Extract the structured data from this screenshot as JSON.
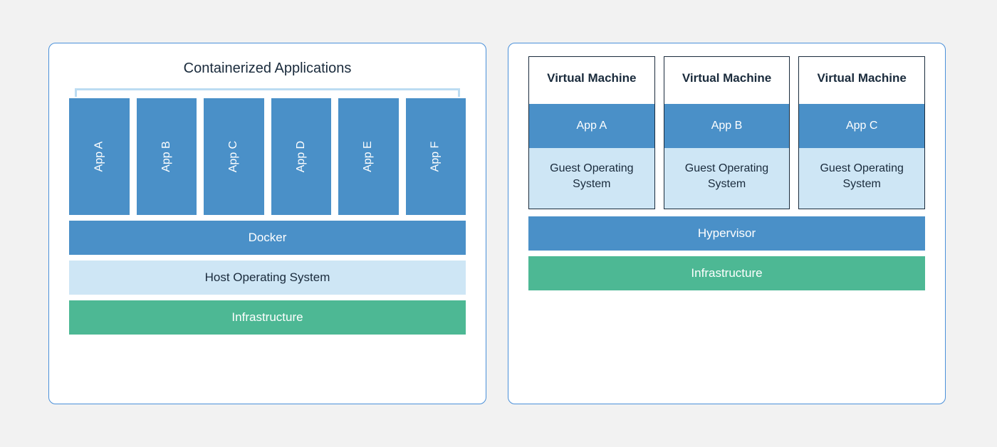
{
  "colors": {
    "page_bg": "#f2f2f2",
    "panel_bg": "#ffffff",
    "panel_border": "#4a90d9",
    "bracket": "#bcdcf2",
    "blue": "#4a90c8",
    "lightblue": "#cee6f5",
    "green": "#4db894",
    "text_dark": "#1a2b3c",
    "text_light": "#ffffff",
    "vm_border": "#1a2b3c"
  },
  "left": {
    "title": "Containerized Applications",
    "apps": [
      "App A",
      "App B",
      "App C",
      "App D",
      "App E",
      "App F"
    ],
    "layers": [
      {
        "label": "Docker",
        "bg": "#4a90c8",
        "fg": "#ffffff"
      },
      {
        "label": "Host Operating System",
        "bg": "#cee6f5",
        "fg": "#1a2b3c"
      },
      {
        "label": "Infrastructure",
        "bg": "#4db894",
        "fg": "#ffffff"
      }
    ],
    "app_bg": "#4a90c8"
  },
  "right": {
    "vms": [
      {
        "title": "Virtual Machine",
        "app": "App A",
        "os": "Guest Operating System"
      },
      {
        "title": "Virtual Machine",
        "app": "App B",
        "os": "Guest Operating System"
      },
      {
        "title": "Virtual Machine",
        "app": "App C",
        "os": "Guest Operating System"
      }
    ],
    "vm_app_bg": "#4a90c8",
    "vm_os_bg": "#cee6f5",
    "layers": [
      {
        "label": "Hypervisor",
        "bg": "#4a90c8",
        "fg": "#ffffff"
      },
      {
        "label": "Infrastructure",
        "bg": "#4db894",
        "fg": "#ffffff"
      }
    ]
  }
}
